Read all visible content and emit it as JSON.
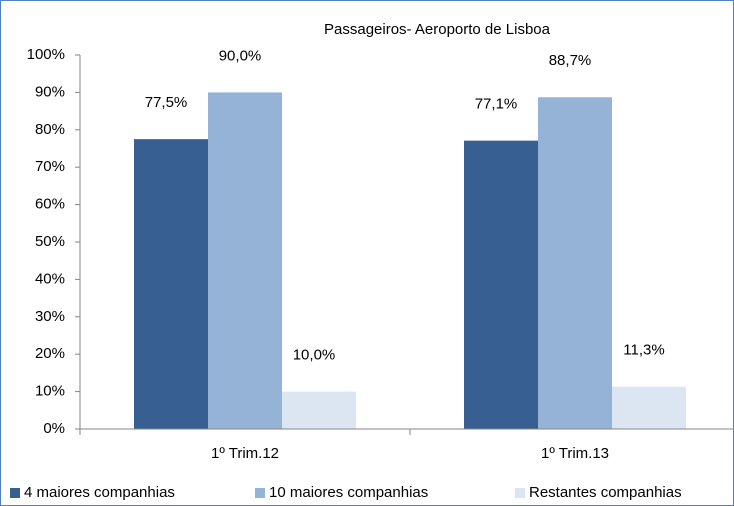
{
  "chart_data": {
    "type": "bar",
    "title": "Passageiros- Aeroporto de Lisboa",
    "categories": [
      "1º Trim.12",
      "1º Trim.13"
    ],
    "series": [
      {
        "name": "4 maiores companhias",
        "color": "#375f92",
        "values": [
          77.5,
          77.1
        ],
        "value_labels": [
          "77,5%",
          "77,1%"
        ]
      },
      {
        "name": "10 maiores companhias",
        "color": "#95b3d7",
        "values": [
          90.0,
          88.7
        ],
        "value_labels": [
          "90,0%",
          "88,7%"
        ]
      },
      {
        "name": "Restantes companhias",
        "color": "#dce6f2",
        "values": [
          10.0,
          11.3
        ],
        "value_labels": [
          "10,0%",
          "11,3%"
        ]
      }
    ],
    "ylim": [
      0,
      100
    ],
    "yticks": [
      {
        "value": 0,
        "label": "0%"
      },
      {
        "value": 10,
        "label": "10%"
      },
      {
        "value": 20,
        "label": "20%"
      },
      {
        "value": 30,
        "label": "30%"
      },
      {
        "value": 40,
        "label": "40%"
      },
      {
        "value": 50,
        "label": "50%"
      },
      {
        "value": 60,
        "label": "60%"
      },
      {
        "value": 70,
        "label": "70%"
      },
      {
        "value": 80,
        "label": "80%"
      },
      {
        "value": 90,
        "label": "90%"
      },
      {
        "value": 100,
        "label": "100%"
      }
    ],
    "grid": false,
    "legend": "bottom"
  }
}
